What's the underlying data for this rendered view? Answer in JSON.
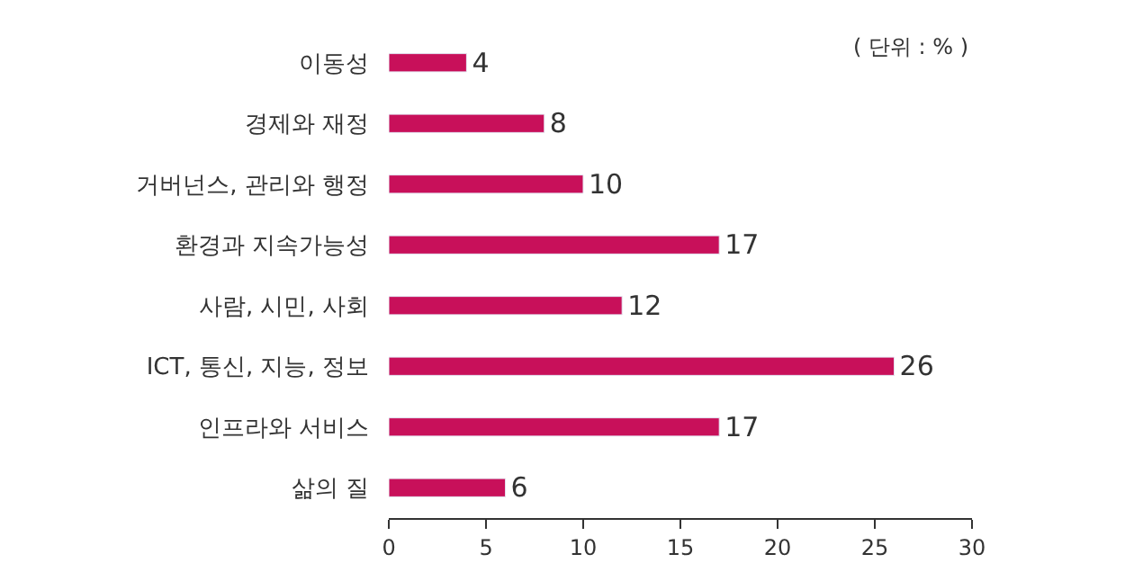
{
  "chart_data": {
    "type": "bar",
    "orientation": "horizontal",
    "categories": [
      "이동성",
      "경제와 재정",
      "거버넌스, 관리와 행정",
      "환경과 지속가능성",
      "사람, 시민, 사회",
      "ICT, 통신, 지능, 정보",
      "인프라와 서비스",
      "삶의 질"
    ],
    "values": [
      4,
      8,
      10,
      17,
      12,
      26,
      17,
      6
    ],
    "color": "#c8105a",
    "xlim": [
      0,
      30
    ],
    "xticks": [
      0,
      5,
      10,
      15,
      20,
      25,
      30
    ],
    "data_labels": true,
    "legend": false,
    "annotations": [
      "( 단위 : % )"
    ]
  }
}
